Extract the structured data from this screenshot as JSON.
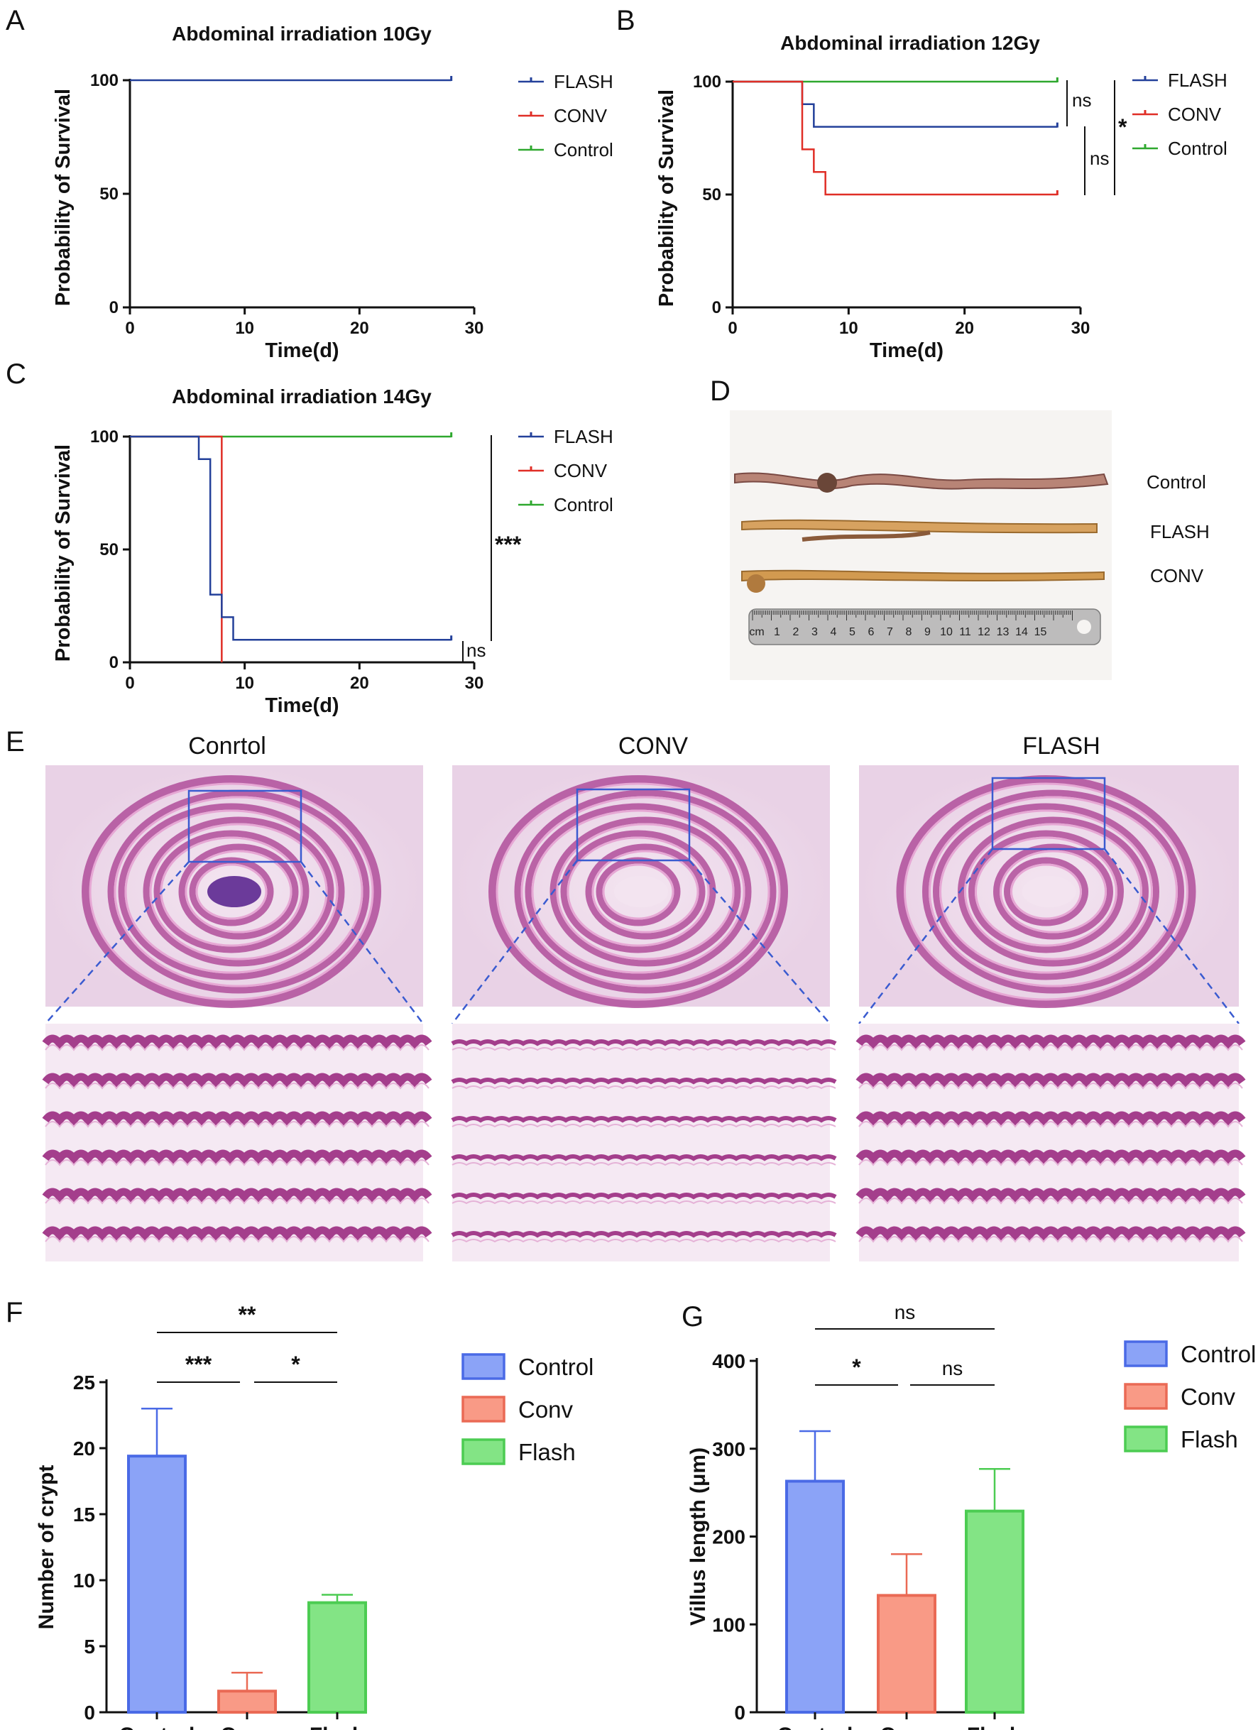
{
  "panel_labels": [
    "A",
    "B",
    "C",
    "D",
    "E",
    "F",
    "G"
  ],
  "colors": {
    "flash": "#23409a",
    "conv": "#e02e26",
    "control": "#2ea82e",
    "bar_control": "#8ba3f7",
    "bar_conv": "#f99a86",
    "bar_flash": "#83e485"
  },
  "chart_data": [
    {
      "panel": "A",
      "type": "line",
      "step": true,
      "title": "Abdominal irradiation 10Gy",
      "xlabel": "Time(d)",
      "ylabel": "Probability of Survival",
      "xlim": [
        0,
        30
      ],
      "ylim": [
        0,
        100
      ],
      "xticks": [
        "0",
        "10",
        "20",
        "30"
      ],
      "yticks": [
        "0",
        "50",
        "100"
      ],
      "legend": [
        "FLASH",
        "CONV",
        "Control"
      ],
      "series": [
        {
          "name": "FLASH",
          "color": "#23409a",
          "points": [
            [
              0,
              100
            ],
            [
              28,
              100
            ]
          ]
        }
      ],
      "annotations": []
    },
    {
      "panel": "B",
      "type": "line",
      "step": true,
      "title": "Abdominal irradiation 12Gy",
      "xlabel": "Time(d)",
      "ylabel": "Probability of Survival",
      "xlim": [
        0,
        30
      ],
      "ylim": [
        0,
        100
      ],
      "xticks": [
        "0",
        "10",
        "20",
        "30"
      ],
      "yticks": [
        "0",
        "50",
        "100"
      ],
      "legend": [
        "FLASH",
        "CONV",
        "Control"
      ],
      "series": [
        {
          "name": "Control",
          "color": "#2ea82e",
          "points": [
            [
              0,
              100
            ],
            [
              28,
              100
            ]
          ]
        },
        {
          "name": "FLASH",
          "color": "#23409a",
          "points": [
            [
              0,
              100
            ],
            [
              6,
              90
            ],
            [
              7,
              80
            ],
            [
              28,
              80
            ]
          ]
        },
        {
          "name": "CONV",
          "color": "#e02e26",
          "points": [
            [
              0,
              100
            ],
            [
              6,
              70
            ],
            [
              7,
              60
            ],
            [
              8,
              50
            ],
            [
              28,
              50
            ]
          ]
        }
      ],
      "annotations": [
        "ns",
        "ns",
        "*"
      ]
    },
    {
      "panel": "C",
      "type": "line",
      "step": true,
      "title": "Abdominal irradiation 14Gy",
      "xlabel": "Time(d)",
      "ylabel": "Probability of Survival",
      "xlim": [
        0,
        30
      ],
      "ylim": [
        0,
        100
      ],
      "xticks": [
        "0",
        "10",
        "20",
        "30"
      ],
      "yticks": [
        "0",
        "50",
        "100"
      ],
      "legend": [
        "FLASH",
        "CONV",
        "Control"
      ],
      "series": [
        {
          "name": "Control",
          "color": "#2ea82e",
          "points": [
            [
              0,
              100
            ],
            [
              28,
              100
            ]
          ]
        },
        {
          "name": "CONV",
          "color": "#e02e26",
          "points": [
            [
              0,
              100
            ],
            [
              7,
              100
            ],
            [
              8,
              0
            ]
          ]
        },
        {
          "name": "FLASH",
          "color": "#23409a",
          "points": [
            [
              0,
              100
            ],
            [
              6,
              90
            ],
            [
              7,
              30
            ],
            [
              8,
              20
            ],
            [
              9,
              10
            ],
            [
              28,
              10
            ]
          ]
        }
      ],
      "annotations": [
        "***",
        "ns"
      ]
    },
    {
      "panel": "F",
      "type": "bar",
      "categories": [
        "Control",
        "Conv",
        "Flash"
      ],
      "values": [
        19.4,
        1.6,
        8.3
      ],
      "errors": [
        3.6,
        1.4,
        0.6
      ],
      "ylabel": "Number of crypt",
      "ylim": [
        0,
        25
      ],
      "yticks": [
        "0",
        "5",
        "10",
        "15",
        "20",
        "25"
      ],
      "legend": [
        "Control",
        "Conv",
        "Flash"
      ],
      "annotations": [
        "**",
        "***",
        "*"
      ]
    },
    {
      "panel": "G",
      "type": "bar",
      "categories": [
        "Control",
        "Conv",
        "Flash"
      ],
      "values": [
        263,
        133,
        229
      ],
      "errors": [
        57,
        47,
        48
      ],
      "ylabel": "Villus length (μm)",
      "ylim": [
        0,
        400
      ],
      "yticks": [
        "0",
        "100",
        "200",
        "300",
        "400"
      ],
      "legend": [
        "Control",
        "Conv",
        "Flash"
      ],
      "annotations": [
        "ns",
        "*",
        "ns"
      ]
    }
  ],
  "photo_D": {
    "labels": [
      "Control",
      "FLASH",
      "CONV"
    ],
    "ruler_numbers": [
      "cm",
      "1",
      "2",
      "3",
      "4",
      "5",
      "6",
      "7",
      "8",
      "9",
      "10",
      "11",
      "12",
      "13",
      "14",
      "15"
    ]
  },
  "histology_E": {
    "titles": [
      "Conrtol",
      "CONV",
      "FLASH"
    ]
  }
}
